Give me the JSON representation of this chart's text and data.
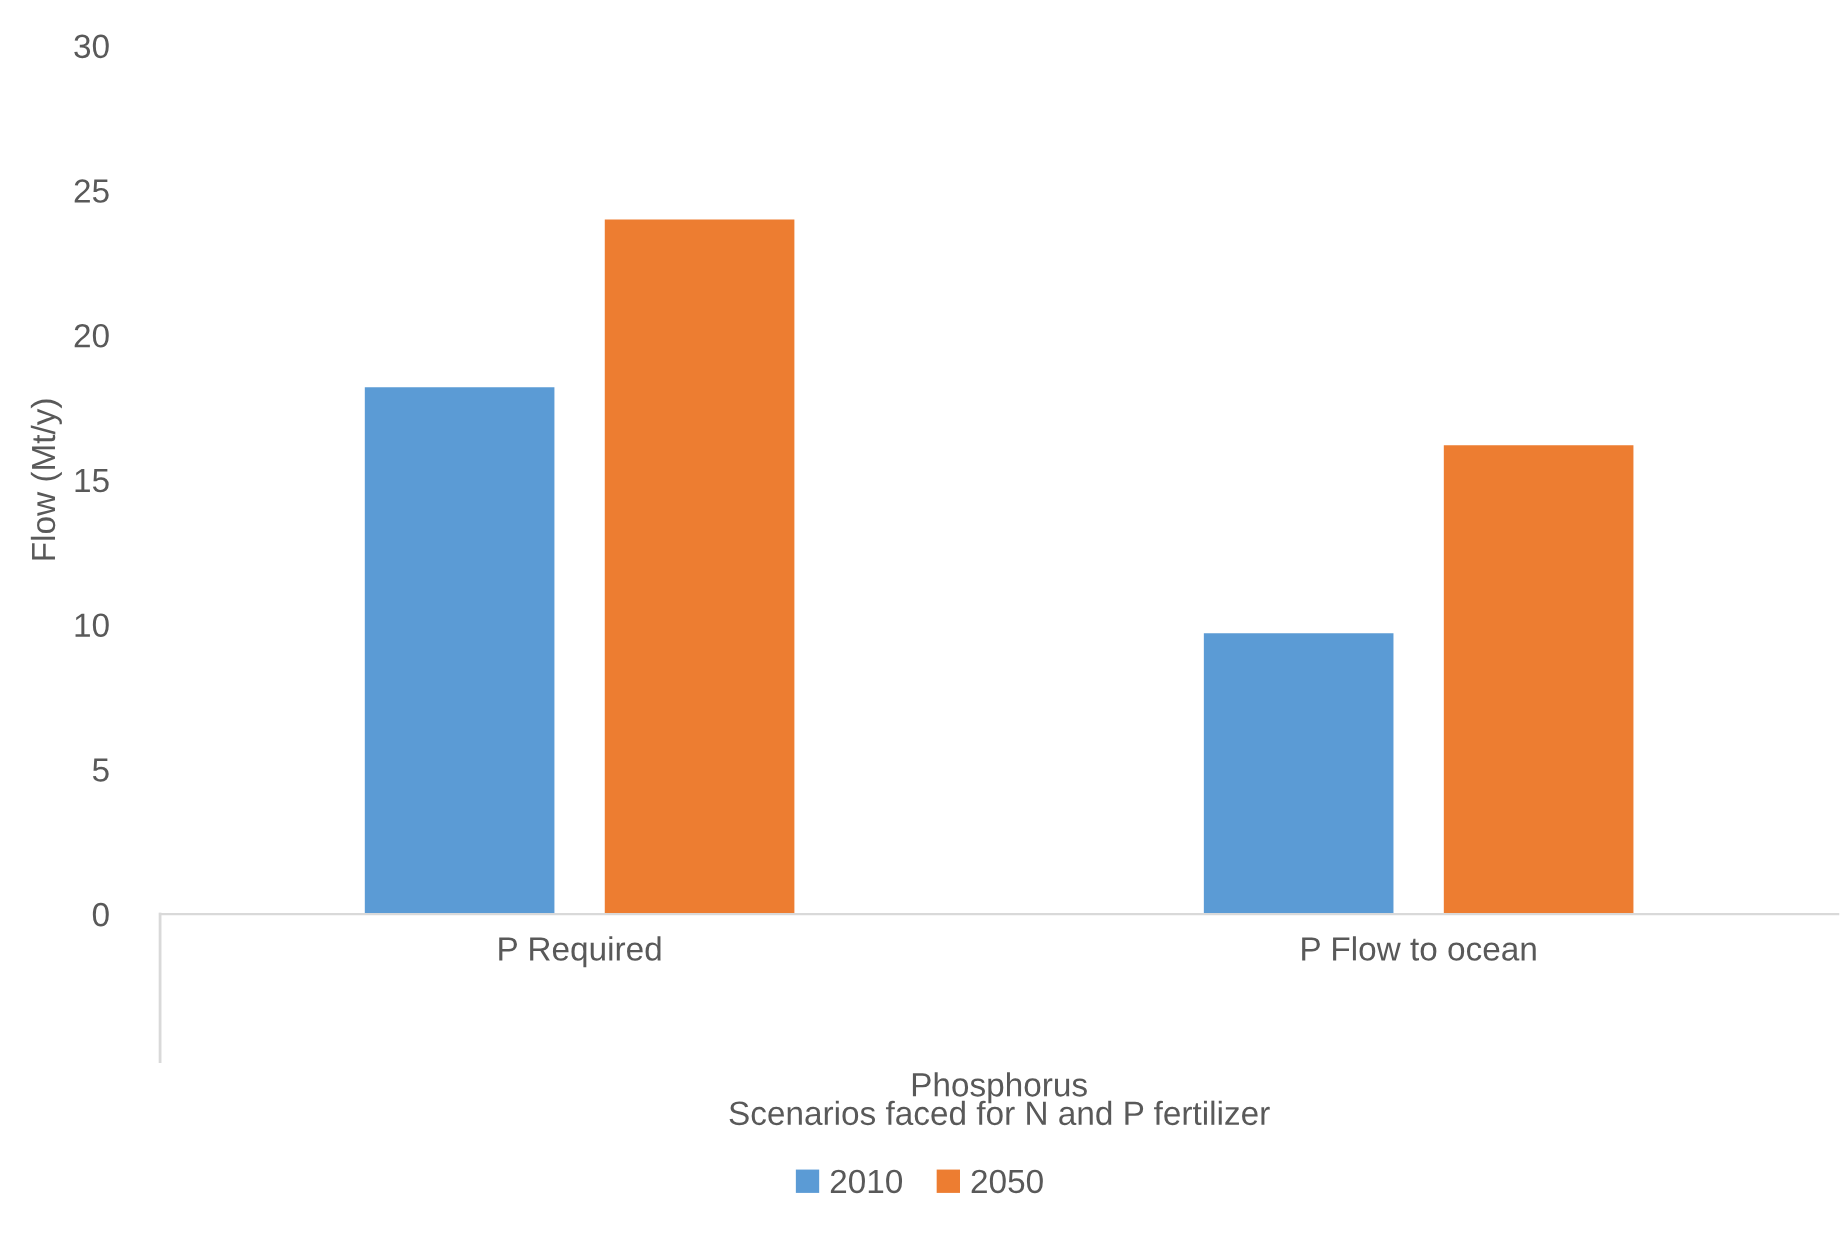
{
  "chart_data": {
    "type": "bar",
    "ylabel": "Flow (Mt/y)",
    "xlabel": "Scenarios faced for N and P fertilizer",
    "annotations": [
      "Phosphorus"
    ],
    "categories": [
      "P Required",
      "P Flow to ocean"
    ],
    "series": [
      {
        "name": "2010",
        "color": "#5b9bd5",
        "values": [
          18.2,
          9.7
        ]
      },
      {
        "name": "2050",
        "color": "#ed7d31",
        "values": [
          24.0,
          16.2
        ]
      }
    ],
    "ylim": [
      0,
      30
    ],
    "yticks": [
      0,
      5,
      10,
      15,
      20,
      25,
      30
    ],
    "grid": false,
    "legend": "bottom"
  }
}
